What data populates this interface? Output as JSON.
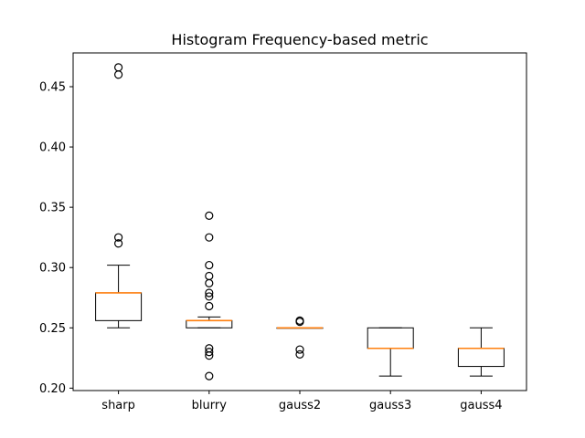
{
  "chart_data": {
    "type": "box",
    "title": "Histogram Frequency-based metric",
    "xlabel": "",
    "ylabel": "",
    "ylim": [
      0.198,
      0.478
    ],
    "yticks": [
      0.2,
      0.25,
      0.3,
      0.35,
      0.4,
      0.45
    ],
    "ytick_labels": [
      "0.20",
      "0.25",
      "0.30",
      "0.35",
      "0.40",
      "0.45"
    ],
    "grid": false,
    "legend": "none",
    "colors": {
      "box": "#000000",
      "median": "#ff7f0e",
      "flier": "#000000"
    },
    "categories": [
      "sharp",
      "blurry",
      "gauss2",
      "gauss3",
      "gauss4"
    ],
    "boxes": [
      {
        "label": "sharp",
        "whisker_low": 0.25,
        "q1": 0.256,
        "median": 0.279,
        "q3": 0.279,
        "whisker_high": 0.302,
        "fliers": [
          0.32,
          0.325,
          0.46,
          0.466
        ]
      },
      {
        "label": "blurry",
        "whisker_low": 0.25,
        "q1": 0.25,
        "median": 0.256,
        "q3": 0.256,
        "whisker_high": 0.259,
        "fliers": [
          0.21,
          0.227,
          0.23,
          0.233,
          0.268,
          0.276,
          0.279,
          0.287,
          0.293,
          0.302,
          0.325,
          0.343
        ]
      },
      {
        "label": "gauss2",
        "whisker_low": 0.25,
        "q1": 0.25,
        "median": 0.25,
        "q3": 0.25,
        "whisker_high": 0.25,
        "fliers": [
          0.228,
          0.232,
          0.255,
          0.256
        ]
      },
      {
        "label": "gauss3",
        "whisker_low": 0.21,
        "q1": 0.233,
        "median": 0.233,
        "q3": 0.25,
        "whisker_high": 0.25,
        "fliers": []
      },
      {
        "label": "gauss4",
        "whisker_low": 0.21,
        "q1": 0.218,
        "median": 0.233,
        "q3": 0.233,
        "whisker_high": 0.25,
        "fliers": []
      }
    ]
  }
}
